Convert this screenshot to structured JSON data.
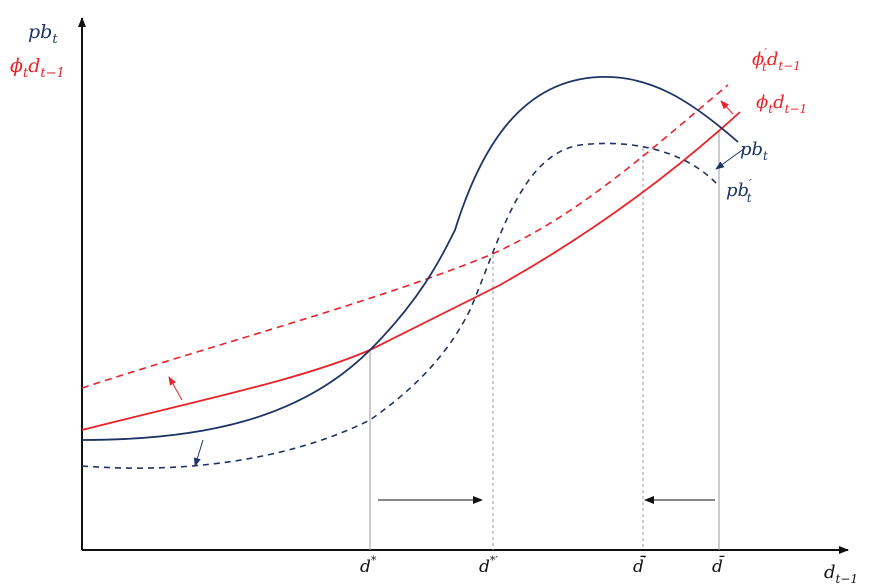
{
  "colors": {
    "blue": "#1f3464",
    "red": "#e8232a",
    "axis": "#111111",
    "guide": "#9a9a9a"
  },
  "labels": {
    "y_axis_top": "pb",
    "y_axis_top_sub": "t",
    "y_axis_second": "ϕ",
    "y_axis_second_sub1": "t",
    "y_axis_second_mid": "d",
    "y_axis_second_sub2": "t−1",
    "x_axis": "d",
    "x_axis_sub": "t−1",
    "curve_phi_prime": "ϕ",
    "curve_phi_prime_sup": "′",
    "curve_phi_prime_sub1": "t",
    "curve_phi_prime_mid": "d",
    "curve_phi_prime_sub2": "t−1",
    "curve_phi": "ϕ",
    "curve_phi_sub1": "t",
    "curve_phi_mid": "d",
    "curve_phi_sub2": "t−1",
    "curve_pb": "pb",
    "curve_pb_sub": "t",
    "curve_pb_prime": "pb",
    "curve_pb_prime_sup": "′",
    "curve_pb_prime_sub": "t",
    "tick_d_star": "d",
    "tick_d_star_sup": "*",
    "tick_d_star_prime": "d",
    "tick_d_star_prime_sup": "*′",
    "tick_d_bar_prime": "d̄",
    "tick_d_bar_prime_sup": "′",
    "tick_d_bar": "d̄"
  }
}
